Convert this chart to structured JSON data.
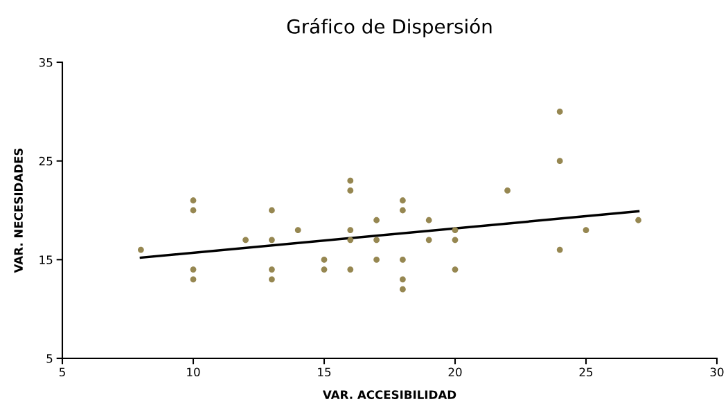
{
  "chart_data": {
    "type": "scatter",
    "title": "Gráfico de Dispersión",
    "xlabel": "VAR. ACCESIBILIDAD",
    "ylabel": "VAR. NECESIDADES",
    "xlim": [
      5,
      30
    ],
    "xticks": [
      5,
      10,
      15,
      20,
      25,
      30
    ],
    "ylim": [
      5,
      35
    ],
    "yticks": [
      5,
      15,
      25,
      35
    ],
    "grid": false,
    "legend": false,
    "series": [
      {
        "marker": "circle",
        "color": "#968751",
        "x": [
          8,
          10,
          10,
          10,
          10,
          12,
          13,
          13,
          13,
          13,
          14,
          15,
          15,
          16,
          16,
          16,
          16,
          16,
          17,
          17,
          17,
          18,
          18,
          18,
          18,
          18,
          19,
          19,
          20,
          20,
          20,
          22,
          24,
          24,
          24,
          25,
          27
        ],
        "values": [
          16,
          21,
          20,
          14,
          13,
          17,
          20,
          17,
          14,
          13,
          18,
          15,
          14,
          23,
          22,
          18,
          17,
          14,
          19,
          17,
          15,
          21,
          20,
          15,
          13,
          12,
          19,
          17,
          18,
          17,
          14,
          22,
          30,
          25,
          16,
          18,
          19
        ]
      },
      {
        "type": "line",
        "marker": "none",
        "color": "#000000",
        "x": [
          8,
          27
        ],
        "values": [
          15.2,
          19.9
        ]
      }
    ]
  }
}
